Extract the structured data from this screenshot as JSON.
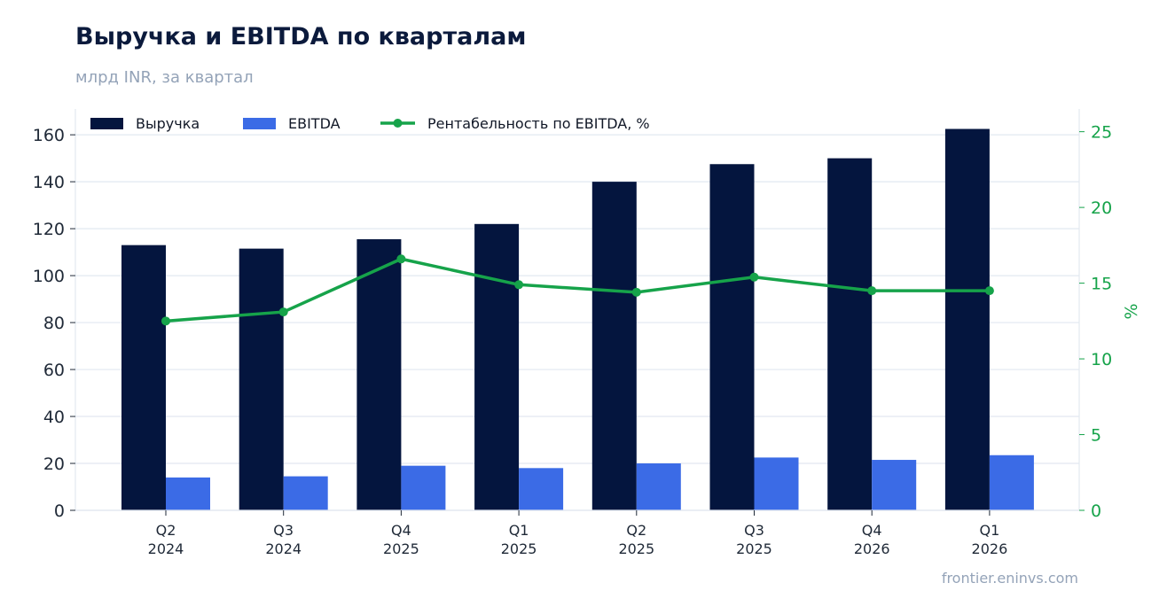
{
  "header": {
    "title": "Выручка и EBITDA по кварталам",
    "subtitle": "млрд INR, за квартал"
  },
  "footer": {
    "source": "frontier.eninvs.com"
  },
  "chart_data": {
    "type": "bar",
    "categories": [
      [
        "Q2",
        "2024"
      ],
      [
        "Q3",
        "2024"
      ],
      [
        "Q4",
        "2025"
      ],
      [
        "Q1",
        "2025"
      ],
      [
        "Q2",
        "2025"
      ],
      [
        "Q3",
        "2025"
      ],
      [
        "Q4",
        "2026"
      ],
      [
        "Q1",
        "2026"
      ]
    ],
    "series": [
      {
        "name": "Выручка",
        "type": "bar",
        "axis": "left",
        "color": "#04153e",
        "values": [
          113,
          111.5,
          115.5,
          122,
          140,
          147.5,
          150,
          162.5
        ]
      },
      {
        "name": "EBITDA",
        "type": "bar",
        "axis": "left",
        "color": "#3b6be6",
        "values": [
          14,
          14.5,
          19,
          18,
          20,
          22.5,
          21.5,
          23.5
        ]
      },
      {
        "name": "Рентабельность по EBITDA, %",
        "type": "line",
        "axis": "right",
        "color": "#16a34a",
        "values": [
          12.5,
          13.1,
          16.6,
          14.9,
          14.4,
          15.4,
          14.5,
          14.5
        ]
      }
    ],
    "ylabel_left": "",
    "ylabel_right": "%",
    "ylim_left": [
      0,
      171
    ],
    "yticks_left": [
      0,
      20,
      40,
      60,
      80,
      100,
      120,
      140,
      160
    ],
    "ylim_right": [
      0,
      26.5
    ],
    "yticks_right": [
      0,
      5,
      10,
      15,
      20,
      25
    ],
    "grid": true,
    "legend": "top-left"
  }
}
